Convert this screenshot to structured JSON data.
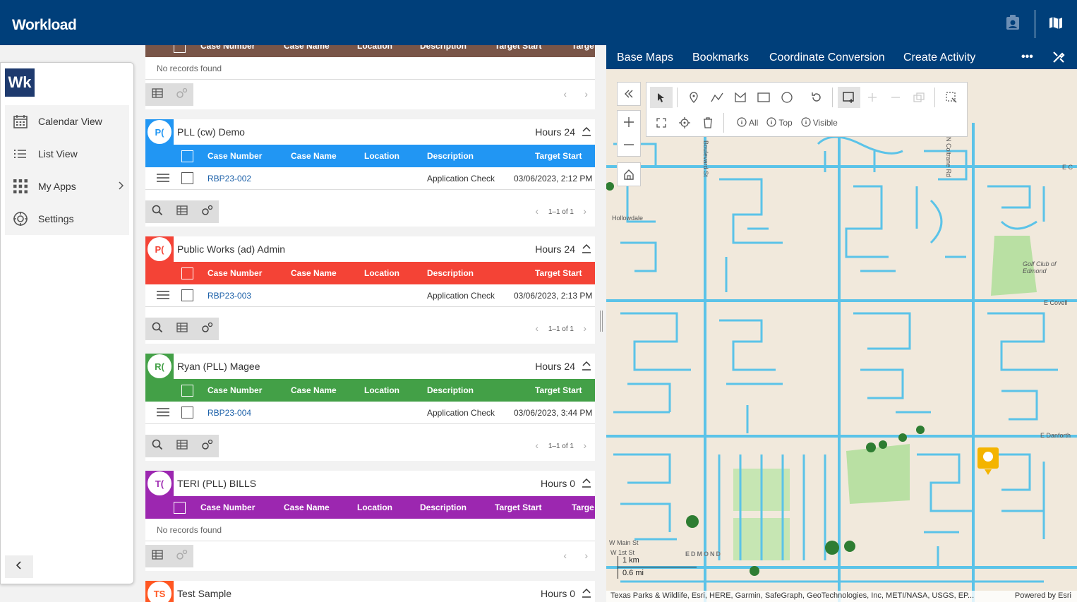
{
  "header": {
    "title": "Workload",
    "icons": [
      "badge-icon",
      "map-icon"
    ]
  },
  "sidebar": {
    "logo": "Wk",
    "items": [
      {
        "label": "Calendar View",
        "icon": "calendar-icon"
      },
      {
        "label": "List View",
        "icon": "list-icon"
      },
      {
        "label": "My Apps",
        "icon": "apps-grid-icon"
      },
      {
        "label": "Settings",
        "icon": "gear-icon"
      }
    ],
    "collapse_icon": "chevron-left-icon"
  },
  "columns": [
    "Case Number",
    "Case Name",
    "Location",
    "Description",
    "Target Start",
    "Targe"
  ],
  "top_card": {
    "no_records": "No records found"
  },
  "groups": [
    {
      "initial": "P(",
      "name": "PLL (cw) Demo",
      "hours": "Hours 24",
      "color": "#2196f3",
      "rows": [
        {
          "case_number": "RBP23-002",
          "description": "Application Check",
          "target_start": "03/06/2023, 2:12 PM"
        }
      ],
      "pager": "1–1 of 1"
    },
    {
      "initial": "P(",
      "name": "Public Works (ad) Admin",
      "hours": "Hours 24",
      "color": "#f44336",
      "rows": [
        {
          "case_number": "RBP23-003",
          "description": "Application Check",
          "target_start": "03/06/2023, 2:13 PM"
        }
      ],
      "pager": "1–1 of 1"
    },
    {
      "initial": "R(",
      "name": "Ryan (PLL) Magee",
      "hours": "Hours 24",
      "color": "#43a047",
      "rows": [
        {
          "case_number": "RBP23-004",
          "description": "Application Check",
          "target_start": "03/06/2023, 3:44 PM"
        }
      ],
      "pager": "1–1 of 1"
    },
    {
      "initial": "T(",
      "name": "TERI (PLL) BILLS",
      "hours": "Hours 0",
      "color": "#9c27b0",
      "no_records": "No records found"
    },
    {
      "initial": "TS",
      "name": "Test Sample",
      "hours": "Hours 0",
      "color": "#ff5722"
    }
  ],
  "map": {
    "nav": [
      "Base Maps",
      "Bookmarks",
      "Coordinate Conversion",
      "Create Activity"
    ],
    "more": "•••",
    "info_buttons": [
      "All",
      "Top",
      "Visible"
    ],
    "scale_km": "1 km",
    "scale_mi": "0.6 mi",
    "attribution": "Texas Parks & Wildlife, Esri, HERE, Garmin, SafeGraph, GeoTechnologies, Inc, METI/NASA, USGS, EP...",
    "powered_by": "Powered by Esri",
    "labels": {
      "hollowdale": "Hollowdale",
      "golf": "Golf Club of Edmond",
      "covell": "E Covell",
      "danforth": "E Danforth",
      "main": "W Main St",
      "first": "W 1st St",
      "edmond": "EDMOND",
      "ec": "E C",
      "coltrane": "N Coltrane Rd",
      "boulevard": "Boulevard St"
    }
  }
}
